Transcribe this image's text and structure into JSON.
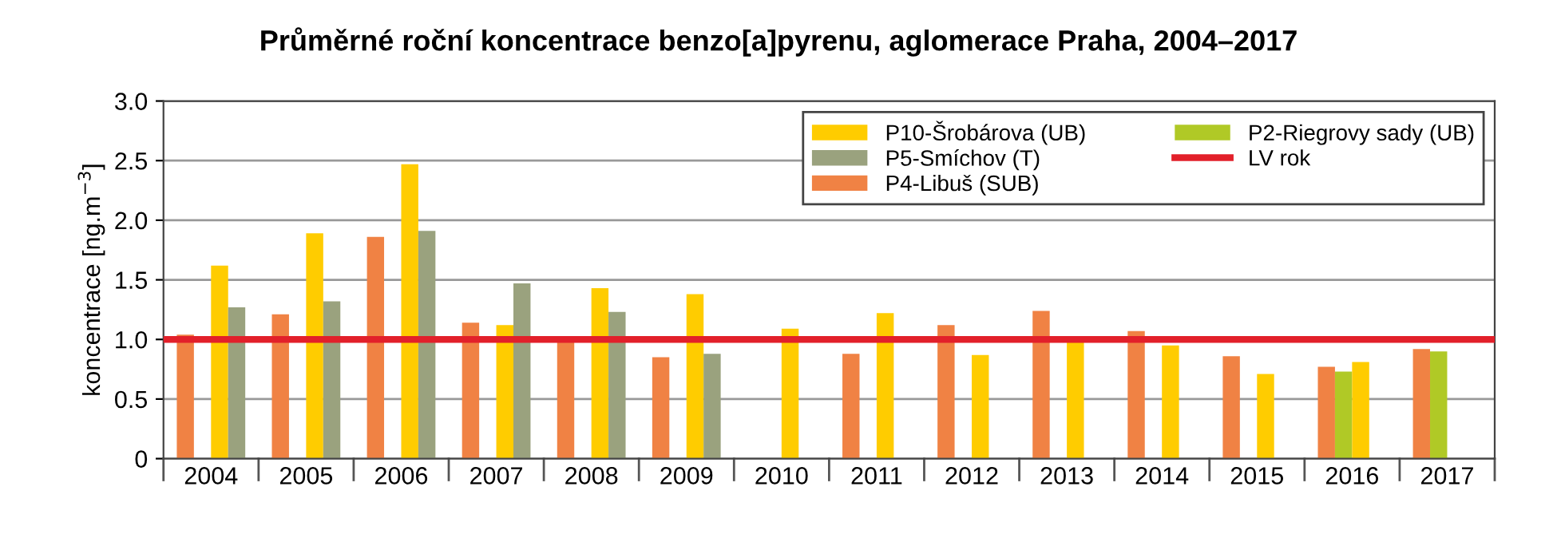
{
  "chart_data": {
    "type": "bar",
    "title": "Průměrné roční koncentrace benzo[a]pyrenu, aglomerace Praha, 2004–2017",
    "ylabel": "koncentrace [ng.m$^{−3}$]",
    "categories": [
      "2004",
      "2005",
      "2006",
      "2007",
      "2008",
      "2009",
      "2010",
      "2011",
      "2012",
      "2013",
      "2014",
      "2015",
      "2016",
      "2017"
    ],
    "series": [
      {
        "name": "P4-Libuš (SUB)",
        "color": "#f08244",
        "values": [
          1.04,
          1.21,
          1.86,
          1.14,
          1.0,
          0.85,
          null,
          0.88,
          1.12,
          1.24,
          1.07,
          0.86,
          0.77,
          0.92
        ]
      },
      {
        "name": "P2-Riegrovy sady (UB)",
        "color": "#b0c926",
        "values": [
          null,
          null,
          null,
          null,
          null,
          null,
          null,
          null,
          null,
          null,
          null,
          null,
          0.73,
          0.9
        ]
      },
      {
        "name": "P10-Šrobárova (UB)",
        "color": "#ffcc00",
        "values": [
          1.62,
          1.89,
          2.47,
          1.12,
          1.43,
          1.38,
          1.09,
          1.22,
          0.87,
          0.99,
          0.95,
          0.71,
          0.81,
          null
        ]
      },
      {
        "name": "P5-Smíchov (T)",
        "color": "#9aa27e",
        "values": [
          1.27,
          1.32,
          1.91,
          1.47,
          1.23,
          0.88,
          null,
          null,
          null,
          null,
          null,
          null,
          null,
          null
        ]
      }
    ],
    "ref_lines": [
      {
        "axis": "y",
        "value": 1.0,
        "label": "LV rok",
        "color": "#e2202a"
      }
    ],
    "ylim": [
      0,
      3.0
    ],
    "yticks": [
      0,
      {
        "value": 0.5,
        "label": "0.5"
      },
      {
        "value": 1.0,
        "label": "1.0"
      },
      {
        "value": 1.5,
        "label": "1.5"
      },
      {
        "value": 2.0,
        "label": "2.0"
      },
      {
        "value": 2.5,
        "label": "2.5"
      },
      {
        "value": 3.0,
        "label": "3.0"
      }
    ],
    "grid": "y",
    "legend": "top right"
  }
}
